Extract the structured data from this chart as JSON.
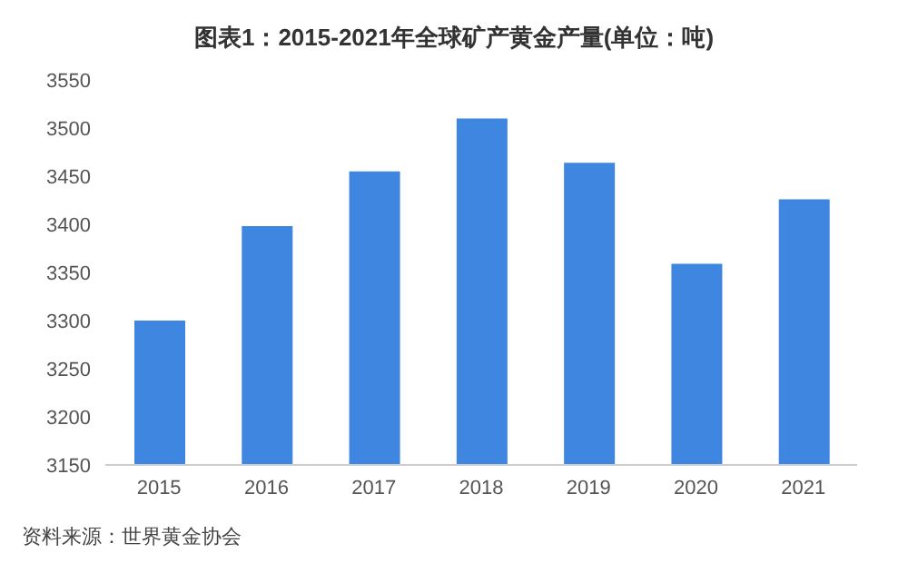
{
  "chart_data": {
    "type": "bar",
    "title": "图表1：2015-2021年全球矿产黄金产量(单位：吨)",
    "categories": [
      "2015",
      "2016",
      "2017",
      "2018",
      "2019",
      "2020",
      "2021"
    ],
    "values": [
      3300,
      3398,
      3455,
      3510,
      3464,
      3359,
      3426
    ],
    "color": "#3f86e0",
    "ylim": [
      3150,
      3550
    ],
    "yticks": [
      3150,
      3200,
      3250,
      3300,
      3350,
      3400,
      3450,
      3500,
      3550
    ],
    "grid": false,
    "annotations": [
      "资料来源：世界黄金协会"
    ]
  }
}
